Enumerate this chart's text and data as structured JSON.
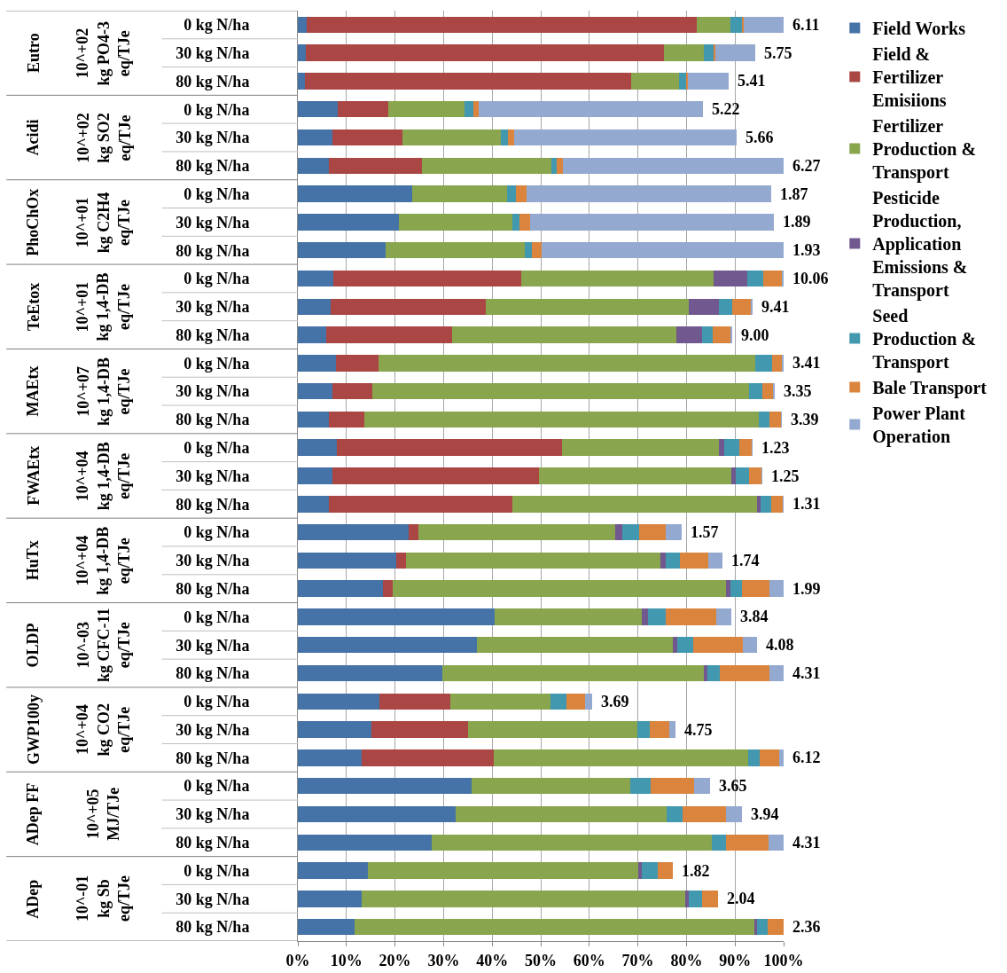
{
  "chart_data": {
    "type": "bar",
    "orientation": "horizontal",
    "stacked": true,
    "grid": "x",
    "legend": "right",
    "categories": [
      "0 kg N/ha",
      "30 kg N/ha",
      "80 kg N/ha",
      "0 kg N/ha",
      "30 kg N/ha",
      "80 kg N/ha",
      "0 kg N/ha",
      "30 kg N/ha",
      "80 kg N/ha",
      "0 kg N/ha",
      "30 kg N/ha",
      "80 kg N/ha",
      "0 kg N/ha",
      "30 kg N/ha",
      "80 kg N/ha",
      "0 kg N/ha",
      "30 kg N/ha",
      "80 kg N/ha",
      "0 kg N/ha",
      "30 kg N/ha",
      "80 kg N/ha",
      "0 kg N/ha",
      "30 kg N/ha",
      "80 kg N/ha",
      "0 kg N/ha",
      "30 kg N/ha",
      "80 kg N/ha",
      "0 kg N/ha",
      "30 kg N/ha",
      "80 kg N/ha",
      "0 kg N/ha",
      "30 kg N/ha",
      "80 kg N/ha"
    ],
    "series": [
      {
        "name": "Field Works",
        "color": "#4572a7",
        "values": [
          1.9,
          1.6,
          1.4,
          8.2,
          7.2,
          6.3,
          23.5,
          20.8,
          18.1,
          7.3,
          6.7,
          5.9,
          7.9,
          7.1,
          6.3,
          8.1,
          7.2,
          6.3,
          22.8,
          20.2,
          17.5,
          40.5,
          36.8,
          29.8,
          16.7,
          15.2,
          13.1,
          35.8,
          32.4,
          27.6,
          14.5,
          13.2,
          11.6
        ]
      },
      {
        "name": "Field & Fertilizer Emisiions",
        "color": "#aa4643",
        "values": [
          80.3,
          73.8,
          67.2,
          10.4,
          14.3,
          19.2,
          0,
          0,
          0,
          38.7,
          31.9,
          25.9,
          8.7,
          8.2,
          7.3,
          46.3,
          42.4,
          37.8,
          2.0,
          2.0,
          2.0,
          0,
          0,
          0,
          14.6,
          19.8,
          27.2,
          0,
          0,
          0,
          0,
          0,
          0
        ]
      },
      {
        "name": "Fertilizer Production & Transport",
        "color": "#89a54e",
        "values": [
          6.8,
          8.1,
          9.9,
          15.7,
          20.3,
          26.6,
          19.6,
          23.3,
          28.7,
          39.5,
          41.8,
          46.1,
          77.5,
          77.6,
          81.2,
          32.2,
          39.6,
          50.4,
          40.6,
          52.4,
          68.6,
          30.3,
          40.3,
          53.7,
          20.7,
          34.8,
          52.4,
          32.7,
          43.5,
          57.7,
          55.6,
          66.6,
          82.4
        ]
      },
      {
        "name": "Pesticide Production, Application Emissions & Transport",
        "color": "#71588f",
        "values": [
          0,
          0,
          0,
          0,
          0,
          0,
          0,
          0,
          0,
          7.1,
          6.3,
          5.3,
          0,
          0,
          0,
          1.2,
          1.0,
          0.7,
          1.3,
          1.2,
          1.0,
          1.3,
          1.0,
          0.8,
          0,
          0,
          0,
          0,
          0,
          0,
          0.7,
          0.7,
          0.5
        ]
      },
      {
        "name": "Seed Production & Transport",
        "color": "#4198af",
        "values": [
          2.5,
          2.1,
          1.5,
          1.8,
          1.4,
          1.2,
          1.8,
          1.5,
          1.3,
          3.2,
          2.7,
          2.2,
          3.5,
          2.8,
          2.3,
          3.1,
          2.7,
          2.3,
          3.5,
          2.9,
          2.3,
          3.7,
          3.3,
          2.6,
          3.2,
          2.7,
          2.4,
          4.1,
          3.3,
          2.8,
          3.2,
          2.7,
          2.2
        ]
      },
      {
        "name": "Bale Transport",
        "color": "#db843d",
        "values": [
          0.2,
          0.4,
          0.3,
          1.2,
          1.3,
          1.2,
          2.1,
          2.2,
          2.1,
          3.9,
          3.9,
          3.7,
          2.1,
          2.2,
          2.3,
          2.5,
          2.5,
          2.3,
          5.5,
          5.7,
          5.6,
          10.3,
          10.2,
          10.2,
          4.0,
          3.9,
          3.9,
          9.0,
          9.0,
          8.8,
          3.2,
          3.3,
          3.3
        ]
      },
      {
        "name": "Power Plant Operation",
        "color": "#93a9cf",
        "values": [
          8.3,
          8.1,
          8.4,
          46.1,
          45.8,
          45.5,
          50.5,
          50.2,
          49.8,
          0.3,
          0.3,
          0.3,
          0.3,
          0.3,
          0.3,
          0.3,
          0.2,
          0.2,
          3.3,
          3.0,
          3.0,
          3.1,
          3.0,
          2.9,
          1.3,
          1.3,
          1.0,
          3.2,
          3.2,
          3.1,
          0,
          0,
          0
        ]
      }
    ],
    "xlim": [
      0,
      100
    ],
    "xticks": [
      {
        "value": 0,
        "label": "0%"
      },
      {
        "value": 10,
        "label": "10%"
      },
      {
        "value": 20,
        "label": "20%"
      },
      {
        "value": 30,
        "label": "30%"
      },
      {
        "value": 40,
        "label": "40%"
      },
      {
        "value": 50,
        "label": "50%"
      },
      {
        "value": 60,
        "label": "60%"
      },
      {
        "value": 70,
        "label": "70%"
      },
      {
        "value": 80,
        "label": "80%"
      },
      {
        "value": 90,
        "label": "90%"
      },
      {
        "value": 100,
        "label": "100%"
      }
    ],
    "annotations": [
      {
        "text": "6.11",
        "x": 100.0
      },
      {
        "text": "5.75",
        "x": 94.1
      },
      {
        "text": "5.41",
        "x": 88.7
      },
      {
        "text": "5.22",
        "x": 83.4
      },
      {
        "text": "5.66",
        "x": 90.3
      },
      {
        "text": "6.27",
        "x": 100.0
      },
      {
        "text": "1.87",
        "x": 97.5
      },
      {
        "text": "1.89",
        "x": 98.0
      },
      {
        "text": "1.93",
        "x": 100.0
      },
      {
        "text": "10.06",
        "x": 100.0
      },
      {
        "text": "9.41",
        "x": 93.6
      },
      {
        "text": "9.00",
        "x": 89.4
      },
      {
        "text": "3.41",
        "x": 100.0
      },
      {
        "text": "3.35",
        "x": 98.2
      },
      {
        "text": "3.39",
        "x": 99.7
      },
      {
        "text": "1.23",
        "x": 93.7
      },
      {
        "text": "1.25",
        "x": 95.6
      },
      {
        "text": "1.31",
        "x": 100.0
      },
      {
        "text": "1.57",
        "x": 79.0
      },
      {
        "text": "1.74",
        "x": 87.4
      },
      {
        "text": "1.99",
        "x": 100.0
      },
      {
        "text": "3.84",
        "x": 89.2
      },
      {
        "text": "4.08",
        "x": 94.6
      },
      {
        "text": "4.31",
        "x": 100.0
      },
      {
        "text": "3.69",
        "x": 60.5
      },
      {
        "text": "4.75",
        "x": 77.7
      },
      {
        "text": "6.12",
        "x": 100.0
      },
      {
        "text": "3.65",
        "x": 84.8
      },
      {
        "text": "3.94",
        "x": 91.4
      },
      {
        "text": "4.31",
        "x": 100.0
      },
      {
        "text": "1.82",
        "x": 77.2
      },
      {
        "text": "2.04",
        "x": 86.5
      },
      {
        "text": "2.36",
        "x": 100.0
      },
      "Eutro",
      "10^+02 kg PO4-3 eq/TJe",
      "Acidi",
      "10^+02 kg SO2 eq/TJe",
      "PhoChOx",
      "10^+01 kg C2H4 eq/TJe",
      "TeEtox",
      "10^+01 kg 1,4-DB eq/TJe",
      "MAEtx",
      "10^+07 kg 1,4-DB eq/TJe",
      "FWAEtx",
      "10^+04 kg 1,4-DB eq/TJe",
      "HuTx",
      "10^+04 kg 1,4-DB eq/TJe",
      "OLDP",
      "10^-03 kg CFC-11 eq/TJe",
      "GWP100y",
      "10^+04 kg CO2 eq/TJe",
      "ADep FF",
      "10^+05 MJ/TJe",
      "ADep",
      "10^-01 kg Sb eq/TJe"
    ]
  }
}
